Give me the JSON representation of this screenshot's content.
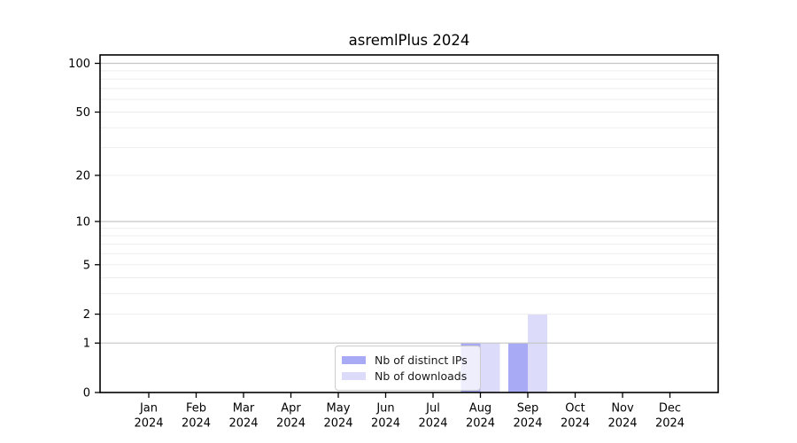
{
  "figure": {
    "background": "#ffffff"
  },
  "chart_data": {
    "type": "bar",
    "title": "asremlPlus 2024",
    "x_tick_labels": [
      {
        "month": "Jan",
        "year": "2024"
      },
      {
        "month": "Feb",
        "year": "2024"
      },
      {
        "month": "Mar",
        "year": "2024"
      },
      {
        "month": "Apr",
        "year": "2024"
      },
      {
        "month": "May",
        "year": "2024"
      },
      {
        "month": "Jun",
        "year": "2024"
      },
      {
        "month": "Jul",
        "year": "2024"
      },
      {
        "month": "Aug",
        "year": "2024"
      },
      {
        "month": "Sep",
        "year": "2024"
      },
      {
        "month": "Oct",
        "year": "2024"
      },
      {
        "month": "Nov",
        "year": "2024"
      },
      {
        "month": "Dec",
        "year": "2024"
      }
    ],
    "series": [
      {
        "name": "Nb of distinct IPs",
        "color": "#a9aaf5",
        "values": [
          0,
          0,
          0,
          0,
          0,
          0,
          0,
          1,
          1,
          0,
          0,
          0
        ]
      },
      {
        "name": "Nb of downloads",
        "color": "#dcdcfa",
        "values": [
          0,
          0,
          0,
          0,
          0,
          0,
          0,
          1,
          2,
          0,
          0,
          0
        ]
      }
    ],
    "y_scale": "log10(value+1)",
    "ylim": [
      0,
      112
    ],
    "y_tick_values": [
      100,
      50,
      20,
      10,
      5,
      2,
      1,
      0
    ],
    "y_tick_labels": [
      "100",
      "50",
      "20",
      "10",
      "5",
      "2",
      "1",
      "0"
    ],
    "y_major_gridlines": [
      1,
      10,
      100
    ],
    "y_minor_gridlines": [
      2,
      3,
      4,
      5,
      6,
      7,
      8,
      9,
      20,
      30,
      40,
      50,
      60,
      70,
      80,
      90
    ],
    "grid": true,
    "legend_position": "inside-bottom-center",
    "colors": {
      "axis": "#000000",
      "text": "#000000",
      "grid_major": "#c5c5c5",
      "grid_minor": "#ededed"
    }
  }
}
